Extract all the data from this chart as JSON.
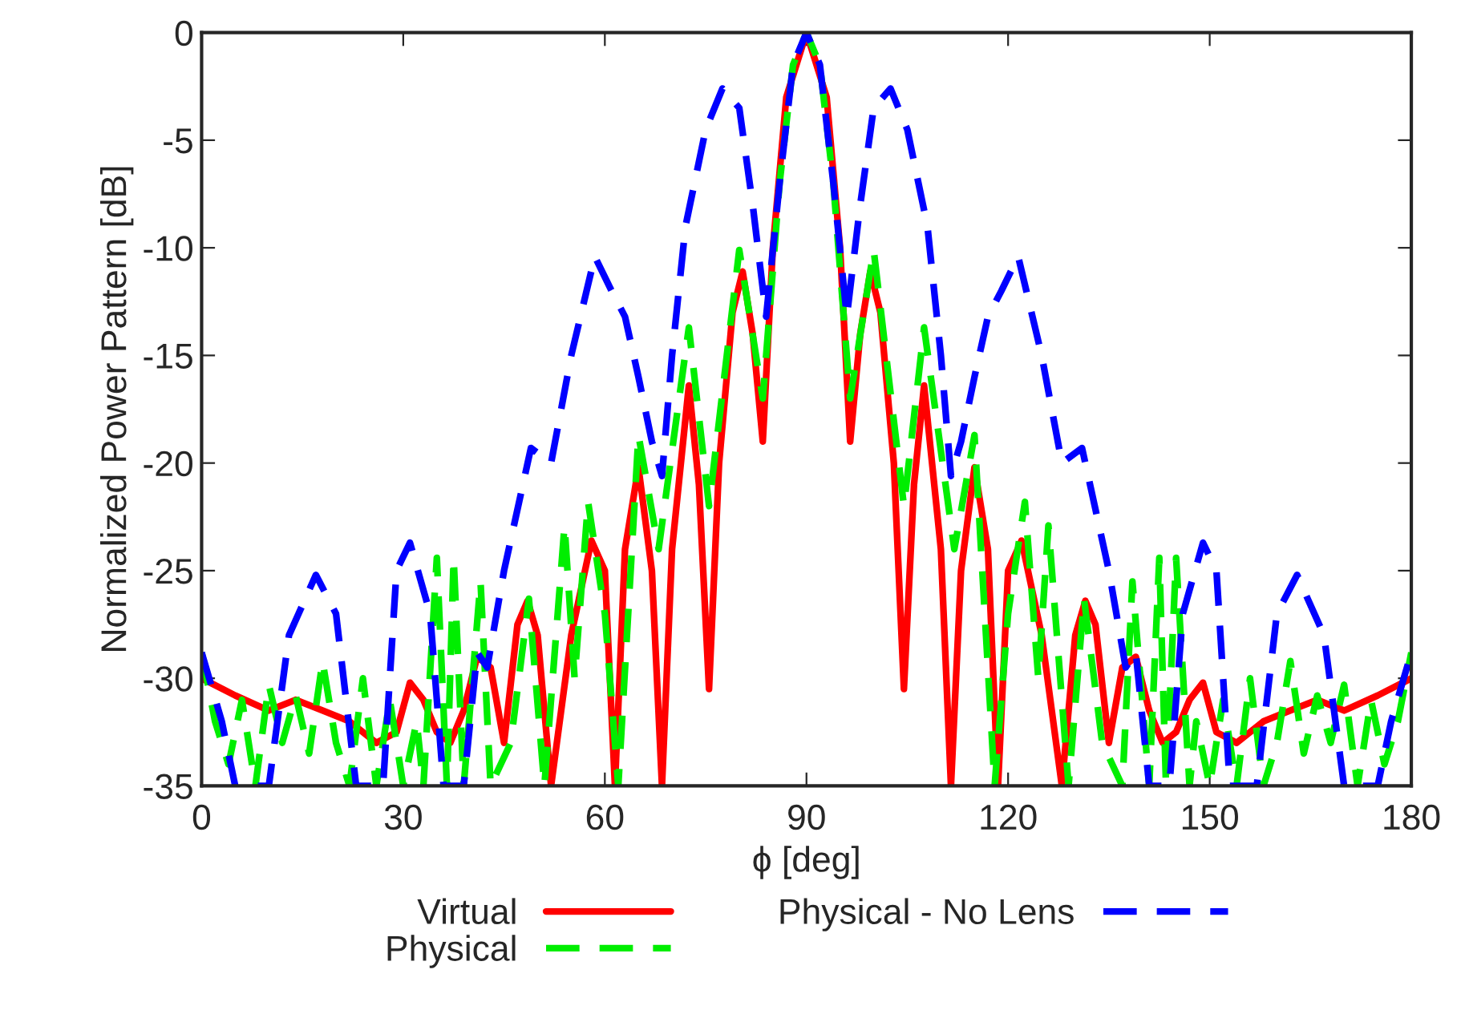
{
  "chart_data": {
    "type": "line",
    "xlabel": "ϕ [deg]",
    "ylabel": "Normalized Power Pattern [dB]",
    "xlim": [
      0,
      180
    ],
    "xticks": [
      0,
      30,
      60,
      90,
      120,
      150,
      180
    ],
    "ylim": [
      -35,
      0
    ],
    "yticks": [
      0,
      -5,
      -10,
      -15,
      -20,
      -25,
      -30,
      -35
    ],
    "grid": false,
    "legend": "bottom",
    "series": [
      {
        "name": "Virtual",
        "color": "#ff0000",
        "line_style": "solid",
        "x": [
          0,
          5,
          10,
          14,
          18,
          22,
          26,
          29,
          31,
          33,
          35,
          37,
          39,
          41,
          43,
          45,
          47,
          48.5,
          50,
          52,
          55,
          58,
          60,
          61.5,
          63,
          65,
          67,
          68.5,
          70,
          72.5,
          74,
          75.5,
          77,
          79,
          80.5,
          82,
          83.5,
          85,
          87,
          90,
          93,
          95,
          96.5,
          98,
          99.5,
          101,
          103,
          104.5,
          106,
          107.5,
          110,
          111.5,
          113,
          115,
          117,
          118.5,
          120,
          122,
          125,
          128,
          130,
          131.5,
          133,
          135,
          137,
          139,
          141,
          143,
          145,
          147,
          149,
          151,
          154,
          158,
          162,
          166,
          170,
          175,
          180
        ],
        "values": [
          -30,
          -30.8,
          -31.5,
          -31,
          -31.5,
          -32,
          -33,
          -32.5,
          -30.2,
          -31,
          -32.5,
          -33,
          -31.5,
          -29,
          -29.5,
          -33,
          -27.5,
          -26.4,
          -28,
          -35,
          -28,
          -23.6,
          -25,
          -35,
          -24,
          -20.2,
          -25,
          -35,
          -24,
          -16.4,
          -21,
          -30.5,
          -20,
          -13,
          -11.1,
          -14,
          -19,
          -10,
          -3,
          0,
          -3,
          -10,
          -19,
          -14,
          -11.1,
          -13,
          -20,
          -30.5,
          -21,
          -16.4,
          -24,
          -35,
          -25,
          -20.2,
          -24,
          -35,
          -25,
          -23.6,
          -28,
          -35,
          -28,
          -26.4,
          -27.5,
          -33,
          -29.5,
          -29,
          -31.5,
          -33,
          -32.5,
          -31,
          -30.2,
          -32.5,
          -33,
          -32,
          -31.5,
          -31,
          -31.5,
          -30.8,
          -30
        ]
      },
      {
        "name": "Physical",
        "color": "#00ee00",
        "line_style": "dashed",
        "x": [
          0,
          2,
          4,
          6,
          8,
          10,
          12,
          14,
          16,
          18,
          20,
          22,
          24,
          26,
          28,
          30,
          32,
          33,
          35,
          36.5,
          37.5,
          39,
          41.5,
          43,
          46,
          48.7,
          51,
          54,
          55.5,
          57.5,
          60,
          62,
          65,
          68,
          72.5,
          75.5,
          80,
          83.5,
          86,
          88,
          90,
          92,
          94,
          96.5,
          100,
          104.5,
          107.5,
          112,
          115,
          118,
          120,
          122.5,
          124.5,
          126,
          129,
          131.3,
          134,
          137,
          138.5,
          141,
          142.5,
          143.5,
          145,
          147,
          148,
          150,
          152,
          154,
          156,
          158,
          160,
          162,
          164,
          166,
          168,
          170,
          172,
          174,
          176,
          178,
          180
        ],
        "values": [
          -28.8,
          -32,
          -34,
          -31,
          -35,
          -30.3,
          -33,
          -30.8,
          -33.5,
          -29.2,
          -33,
          -35,
          -30,
          -35,
          -31,
          -35,
          -32,
          -35,
          -24.4,
          -35,
          -24.4,
          -35,
          -25.5,
          -35,
          -33,
          -26.3,
          -35,
          -22.9,
          -30,
          -21.8,
          -27,
          -35,
          -18.7,
          -24,
          -13.7,
          -22,
          -10.1,
          -17,
          -7,
          -1.5,
          0,
          -1.5,
          -7,
          -17,
          -10.1,
          -22,
          -13.7,
          -24,
          -18.7,
          -35,
          -27,
          -21.8,
          -30,
          -22.9,
          -35,
          -26.3,
          -33,
          -35,
          -25.5,
          -35,
          -24.4,
          -35,
          -24.4,
          -35,
          -32,
          -35,
          -31,
          -35,
          -30,
          -35,
          -33,
          -29.2,
          -33.5,
          -30.8,
          -33,
          -30.3,
          -35,
          -31,
          -34,
          -32,
          -28.8
        ]
      },
      {
        "name": "Physical - No Lens",
        "color": "#0000ff",
        "line_style": "dashed",
        "x": [
          0,
          3,
          5,
          10,
          13,
          17,
          20,
          23,
          27,
          29,
          31,
          34,
          36,
          39,
          41,
          42.5,
          45,
          49,
          52,
          55,
          58.5,
          61,
          63,
          65,
          67,
          68.5,
          70,
          72,
          75,
          77.5,
          80,
          82,
          84,
          86,
          88,
          90,
          92,
          94,
          96,
          98,
          100,
          102.5,
          105,
          108,
          110,
          111.5,
          113,
          115,
          117,
          119,
          121.5,
          125,
          128,
          131,
          135,
          137.5,
          139,
          141,
          144,
          146,
          149,
          151,
          153,
          157,
          160,
          163,
          167,
          170,
          175,
          177,
          180
        ],
        "values": [
          -28.8,
          -32,
          -35,
          -35,
          -28,
          -25.2,
          -27,
          -35,
          -35,
          -25,
          -23.7,
          -27,
          -35,
          -35,
          -28.8,
          -29.5,
          -25,
          -19.3,
          -20,
          -15,
          -10.4,
          -12,
          -13.2,
          -16,
          -19,
          -20.6,
          -15,
          -9,
          -4.5,
          -2.6,
          -3.5,
          -8,
          -13.2,
          -7,
          -1.5,
          0,
          -1.5,
          -7,
          -13.2,
          -8,
          -3.5,
          -2.6,
          -4.5,
          -9,
          -15,
          -20.6,
          -19,
          -16,
          -13.2,
          -12,
          -10.4,
          -15,
          -20,
          -19.3,
          -25,
          -29.5,
          -28.8,
          -35,
          -35,
          -27,
          -23.7,
          -25,
          -35,
          -35,
          -27,
          -25.2,
          -28,
          -35,
          -35,
          -32,
          -28.8
        ]
      }
    ]
  }
}
